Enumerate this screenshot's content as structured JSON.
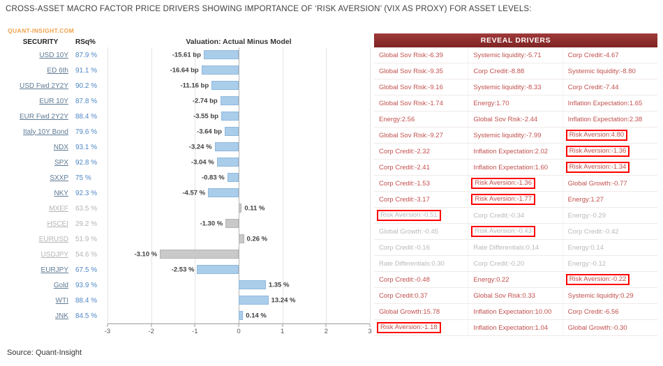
{
  "title": "CROSS-ASSET MACRO FACTOR PRICE DRIVERS SHOWING IMPORTANCE OF ‘RISK AVERSION’ (VIX AS PROXY) FOR ASSET LEVELS:",
  "watermark": "QUANT-INSIGHT.COM",
  "source": "Source: Quant-Insight",
  "colors": {
    "bar_blue": "#aacdea",
    "bar_gray": "#c9c9c9",
    "driver_text": "#c0504d",
    "muted_text": "#b9b9b9",
    "header_bg": "#8f2b2b",
    "highlight_box": "#ff0000",
    "brand_orange": "#f0a14b",
    "rsq_blue": "#4e87c6",
    "security_link": "#5e7a94"
  },
  "left_panel": {
    "col_security": "SECURITY",
    "col_rsq": "RSq%",
    "chart_title": "Valuation: Actual Minus Model",
    "x_ticks": [
      "-3",
      "-2",
      "-1",
      "0",
      "1",
      "2",
      "3"
    ],
    "rows": [
      {
        "security": "USD 10Y",
        "rsq": "87.9 %",
        "label": "-15.61 bp",
        "bar": -0.8,
        "muted": false
      },
      {
        "security": "ED 6th",
        "rsq": "91.1 %",
        "label": "-16.64 bp",
        "bar": -0.85,
        "muted": false
      },
      {
        "security": "USD Fwd 2Y2Y",
        "rsq": "90.2 %",
        "label": "-11.16 bp",
        "bar": -0.62,
        "muted": false
      },
      {
        "security": "EUR 10Y",
        "rsq": "87.8 %",
        "label": "-2.74 bp",
        "bar": -0.42,
        "muted": false
      },
      {
        "security": "EUR Fwd 2Y2Y",
        "rsq": "88.4 %",
        "label": "-3.55 bp",
        "bar": -0.4,
        "muted": false
      },
      {
        "security": "Italy 10Y Bond",
        "rsq": "79.6 %",
        "label": "-3.64 bp",
        "bar": -0.32,
        "muted": false
      },
      {
        "security": "NDX",
        "rsq": "93.1 %",
        "label": "-3.24 %",
        "bar": -0.55,
        "muted": false
      },
      {
        "security": "SPX",
        "rsq": "92.8 %",
        "label": "-3.04 %",
        "bar": -0.5,
        "muted": false
      },
      {
        "security": "SXXP",
        "rsq": "75 %",
        "label": "-0.83 %",
        "bar": -0.26,
        "muted": false
      },
      {
        "security": "NKY",
        "rsq": "92.3 %",
        "label": "-4.57 %",
        "bar": -0.7,
        "muted": false
      },
      {
        "security": "MXEF",
        "rsq": "63.5 %",
        "label": "0.11 %",
        "bar": 0.07,
        "muted": true
      },
      {
        "security": "HSCEI",
        "rsq": "29.2 %",
        "label": "-1.30 %",
        "bar": -0.3,
        "muted": true
      },
      {
        "security": "EURUSD",
        "rsq": "51.9 %",
        "label": "0.26 %",
        "bar": 0.12,
        "muted": true
      },
      {
        "security": "USDJPY",
        "rsq": "54.6 %",
        "label": "-3.10 %",
        "bar": -1.8,
        "muted": true
      },
      {
        "security": "EURJPY",
        "rsq": "67.5 %",
        "label": "-2.53 %",
        "bar": -0.95,
        "muted": false
      },
      {
        "security": "Gold",
        "rsq": "93.9 %",
        "label": "1.35 %",
        "bar": 0.62,
        "muted": false
      },
      {
        "security": "WTI",
        "rsq": "88.4 %",
        "label": "13.24 %",
        "bar": 0.68,
        "muted": false
      },
      {
        "security": "JNK",
        "rsq": "84.5 %",
        "label": "0.14 %",
        "bar": 0.1,
        "muted": false
      }
    ]
  },
  "drivers_panel": {
    "header": "REVEAL DRIVERS",
    "rows": [
      {
        "cells": [
          {
            "text": "Global Sov Risk:-6.39"
          },
          {
            "text": "Systemic liquidity:-5.71"
          },
          {
            "text": "Corp Credit:-4.67"
          }
        ]
      },
      {
        "cells": [
          {
            "text": "Global Sov Risk:-9.35"
          },
          {
            "text": "Corp Credit:-8.88"
          },
          {
            "text": "Systemic liquidity:-8.80"
          }
        ]
      },
      {
        "cells": [
          {
            "text": "Global Sov Risk:-9.16"
          },
          {
            "text": "Systemic liquidity:-8.33"
          },
          {
            "text": "Corp Credit:-7.44"
          }
        ]
      },
      {
        "cells": [
          {
            "text": "Global Sov Risk:-1.74"
          },
          {
            "text": "Energy:1.70"
          },
          {
            "text": "Inflation Expectation:1.65"
          }
        ]
      },
      {
        "cells": [
          {
            "text": "Energy:2.56"
          },
          {
            "text": "Global Sov Risk:-2.44"
          },
          {
            "text": "Inflation Expectation:2.38"
          }
        ]
      },
      {
        "cells": [
          {
            "text": "Global Sov Risk:-9.27"
          },
          {
            "text": "Systemic liquidity:-7.99"
          },
          {
            "text": "Risk Aversion:4.80",
            "boxed": true
          }
        ]
      },
      {
        "cells": [
          {
            "text": "Corp Credit:-2.32"
          },
          {
            "text": "Inflation Expectation:2.02"
          },
          {
            "text": "Risk Aversion:-1.36",
            "boxed": true
          }
        ]
      },
      {
        "cells": [
          {
            "text": "Corp Credit:-2.41"
          },
          {
            "text": "Inflation Expectation:1.60"
          },
          {
            "text": "Risk Aversion:-1.34",
            "boxed": true
          }
        ]
      },
      {
        "cells": [
          {
            "text": "Corp Credit:-1.53"
          },
          {
            "text": "Risk Aversion:-1.36",
            "boxed": true
          },
          {
            "text": "Global Growth:-0.77"
          }
        ]
      },
      {
        "cells": [
          {
            "text": "Corp Credit:-3.17"
          },
          {
            "text": "Risk Aversion:-1.77",
            "boxed": true
          },
          {
            "text": "Energy:1.27"
          }
        ]
      },
      {
        "cells": [
          {
            "text": "Risk Aversion:-0.51",
            "boxed": true,
            "muted": true
          },
          {
            "text": "Corp Credit:-0.34",
            "muted": true
          },
          {
            "text": "Energy:-0.29",
            "muted": true
          }
        ]
      },
      {
        "cells": [
          {
            "text": "Global Growth:-0.45",
            "muted": true
          },
          {
            "text": "Risk Aversion:-0.43",
            "boxed": true,
            "muted": true
          },
          {
            "text": "Corp Credit:-0.42",
            "muted": true
          }
        ]
      },
      {
        "cells": [
          {
            "text": "Corp Credit:-0.16",
            "muted": true
          },
          {
            "text": "Rate Differentials:0.14",
            "muted": true
          },
          {
            "text": "Energy:0.14",
            "muted": true
          }
        ]
      },
      {
        "cells": [
          {
            "text": "Rate Differentials:0.30",
            "muted": true
          },
          {
            "text": "Corp Credit:-0.20",
            "muted": true
          },
          {
            "text": "Energy:-0.12",
            "muted": true
          }
        ]
      },
      {
        "cells": [
          {
            "text": "Corp Credit:-0.48"
          },
          {
            "text": "Energy:0.22"
          },
          {
            "text": "Risk Aversion:-0.22",
            "boxed": true
          }
        ]
      },
      {
        "cells": [
          {
            "text": "Corp Credit:0.37"
          },
          {
            "text": "Global Sov Risk:0.33"
          },
          {
            "text": "Systemic liquidity:0.29"
          }
        ]
      },
      {
        "cells": [
          {
            "text": "Global Growth:15.78"
          },
          {
            "text": "Inflation Expectation:10.00"
          },
          {
            "text": "Corp Credit:-6.56"
          }
        ]
      },
      {
        "cells": [
          {
            "text": "Risk Aversion:-1.18",
            "boxed": true
          },
          {
            "text": "Inflation Expectation:1.04"
          },
          {
            "text": "Global Growth:-0.30"
          }
        ]
      }
    ]
  },
  "chart_data": {
    "type": "bar",
    "orientation": "horizontal",
    "title": "Valuation: Actual Minus Model",
    "categories": [
      "USD 10Y",
      "ED 6th",
      "USD Fwd 2Y2Y",
      "EUR 10Y",
      "EUR Fwd 2Y2Y",
      "Italy 10Y Bond",
      "NDX",
      "SPX",
      "SXXP",
      "NKY",
      "MXEF",
      "HSCEI",
      "EURUSD",
      "USDJPY",
      "EURJPY",
      "Gold",
      "WTI",
      "JNK"
    ],
    "values": [
      -15.61,
      -16.64,
      -11.16,
      -2.74,
      -3.55,
      -3.64,
      -3.24,
      -3.04,
      -0.83,
      -4.57,
      0.11,
      -1.3,
      0.26,
      -3.1,
      -2.53,
      1.35,
      13.24,
      0.14
    ],
    "value_units": [
      "bp",
      "bp",
      "bp",
      "bp",
      "bp",
      "bp",
      "%",
      "%",
      "%",
      "%",
      "%",
      "%",
      "%",
      "%",
      "%",
      "%",
      "%",
      "%"
    ],
    "bar_display_axis_units": [
      -0.8,
      -0.85,
      -0.62,
      -0.42,
      -0.4,
      -0.32,
      -0.55,
      -0.5,
      -0.26,
      -0.7,
      0.07,
      -0.3,
      0.12,
      -1.8,
      -0.95,
      0.62,
      0.68,
      0.1
    ],
    "rsq_percent": [
      87.9,
      91.1,
      90.2,
      87.8,
      88.4,
      79.6,
      93.1,
      92.8,
      75,
      92.3,
      63.5,
      29.2,
      51.9,
      54.6,
      67.5,
      93.9,
      88.4,
      84.5
    ],
    "muted_categories": [
      "MXEF",
      "HSCEI",
      "EURUSD",
      "USDJPY"
    ],
    "xlim": [
      -3,
      3
    ],
    "x_ticks": [
      -3,
      -2,
      -1,
      0,
      1,
      2,
      3
    ],
    "grid": true,
    "legend_position": "none"
  }
}
